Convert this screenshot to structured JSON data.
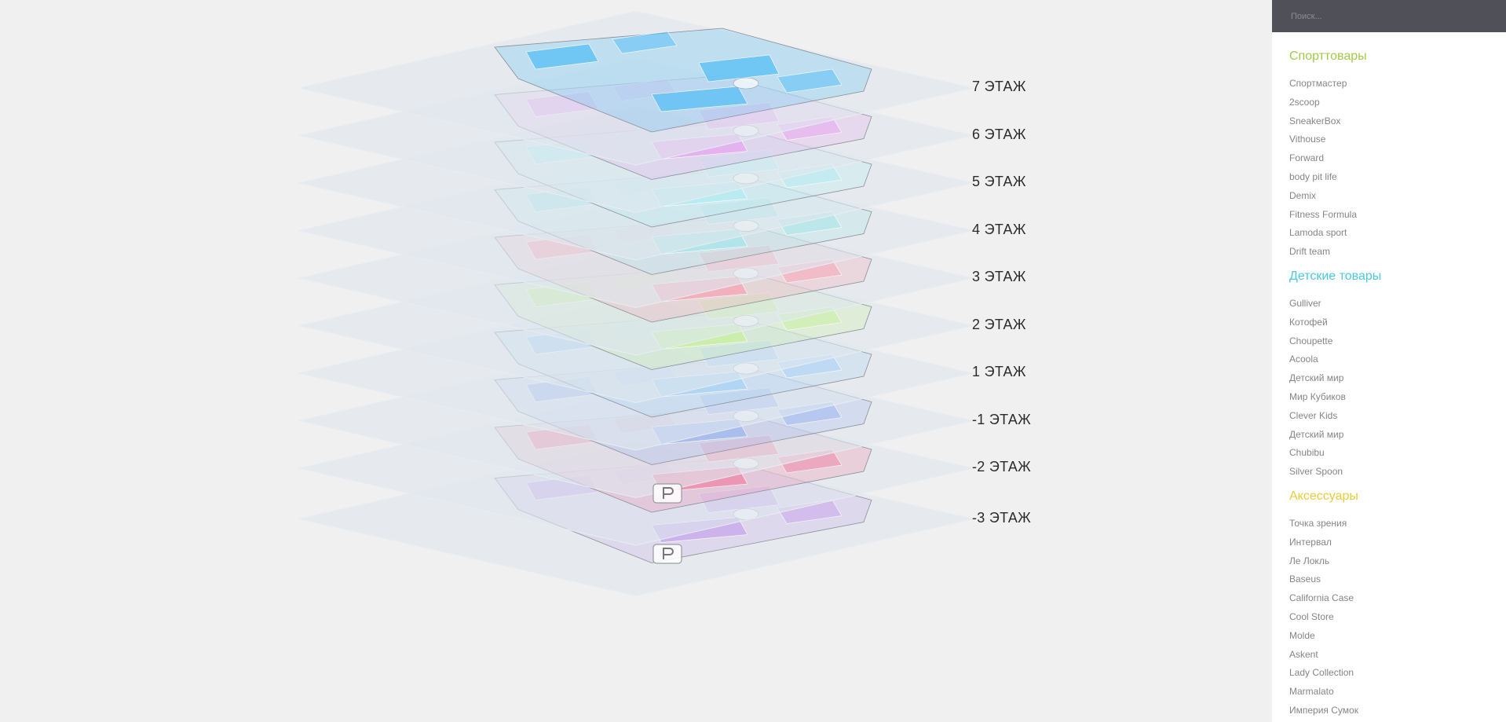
{
  "search": {
    "placeholder": "Поиск..."
  },
  "floors": [
    {
      "label": "7 ЭТАЖ",
      "tint": "#5bc0f5"
    },
    {
      "label": "6 ЭТАЖ",
      "tint": "#e6a8ee"
    },
    {
      "label": "5 ЭТАЖ",
      "tint": "#b4ecf2"
    },
    {
      "label": "4 ЭТАЖ",
      "tint": "#a8e6ea"
    },
    {
      "label": "3 ЭТАЖ",
      "tint": "#f5a5b5"
    },
    {
      "label": "2 ЭТАЖ",
      "tint": "#c8f0a0"
    },
    {
      "label": "1 ЭТАЖ",
      "tint": "#a9d2f5"
    },
    {
      "label": "-1 ЭТАЖ",
      "tint": "#9fb8f0"
    },
    {
      "label": "-2 ЭТАЖ",
      "tint": "#ee88a8"
    },
    {
      "label": "-3 ЭТАЖ",
      "tint": "#c8a8ec"
    }
  ],
  "sidebar": {
    "categories": [
      {
        "title": "Спорттовары",
        "color": "#a3c94a",
        "items": [
          "Спортмастер",
          "2scoop",
          "SneakerBox",
          "Vithouse",
          "Forward",
          "body pit life",
          "Demix",
          "Fitness Formula",
          "Lamoda sport",
          "Drift team"
        ]
      },
      {
        "title": "Детские товары",
        "color": "#4cc8dc",
        "items": [
          "Gulliver",
          "Котофей",
          "Choupette",
          "Acoola",
          "Детский мир",
          "Мир Кубиков",
          "Clever Kids",
          "Детский мир",
          "Chubibu",
          "Silver Spoon"
        ]
      },
      {
        "title": "Аксессуары",
        "color": "#e8cc3c",
        "items": [
          "Точка зрения",
          "Интервал",
          "Ле Локль",
          "Baseus",
          "California Case",
          "Cool Store",
          "Molde",
          "Askent",
          "Lady Collection",
          "Marmalato",
          "Империя Сумок"
        ]
      }
    ]
  }
}
